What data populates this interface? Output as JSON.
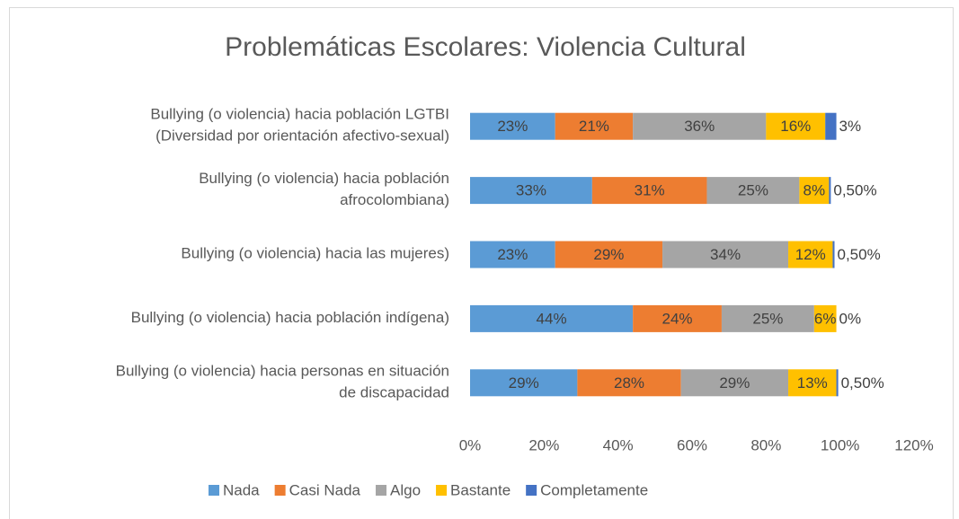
{
  "chart_data": {
    "type": "stacked_bar_horizontal",
    "title": "Problemáticas Escolares: Violencia Cultural",
    "categories": [
      "Bullying (o violencia) hacia población LGTBI\n(Diversidad por orientación afectivo-sexual)",
      "Bullying (o violencia) hacia población\nafrocolombiana)",
      "Bullying (o violencia) hacia las mujeres)",
      "Bullying (o violencia) hacia población indígena)",
      "Bullying (o violencia) hacia personas en situación\nde discapacidad"
    ],
    "series": [
      {
        "name": "Nada",
        "color": "#5b9bd5",
        "values": [
          23,
          33,
          23,
          44,
          29
        ],
        "value_labels": [
          "23%",
          "33%",
          "23%",
          "44%",
          "29%"
        ]
      },
      {
        "name": "Casi Nada",
        "color": "#ed7d31",
        "values": [
          21,
          31,
          29,
          24,
          28
        ],
        "value_labels": [
          "21%",
          "31%",
          "29%",
          "24%",
          "28%"
        ]
      },
      {
        "name": "Algo",
        "color": "#a5a5a5",
        "values": [
          36,
          25,
          34,
          25,
          29
        ],
        "value_labels": [
          "36%",
          "25%",
          "34%",
          "25%",
          "29%"
        ]
      },
      {
        "name": "Bastante",
        "color": "#ffc000",
        "values": [
          16,
          8,
          12,
          6,
          13
        ],
        "value_labels": [
          "16%",
          "8%",
          "12%",
          "6%",
          "13%"
        ]
      },
      {
        "name": "Completamente",
        "color": "#4472c4",
        "values": [
          3,
          0.5,
          0.5,
          0,
          0.5
        ],
        "value_labels": [
          "3%",
          "0,50%",
          "0,50%",
          "0%",
          "0,50%"
        ]
      }
    ],
    "xlim": [
      0,
      120
    ],
    "xticks": [
      {
        "value": 0,
        "label": "0%"
      },
      {
        "value": 20,
        "label": "20%"
      },
      {
        "value": 40,
        "label": "40%"
      },
      {
        "value": 60,
        "label": "60%"
      },
      {
        "value": 80,
        "label": "80%"
      },
      {
        "value": 100,
        "label": "100%"
      },
      {
        "value": 120,
        "label": "120%"
      }
    ],
    "legend": "bottom"
  }
}
